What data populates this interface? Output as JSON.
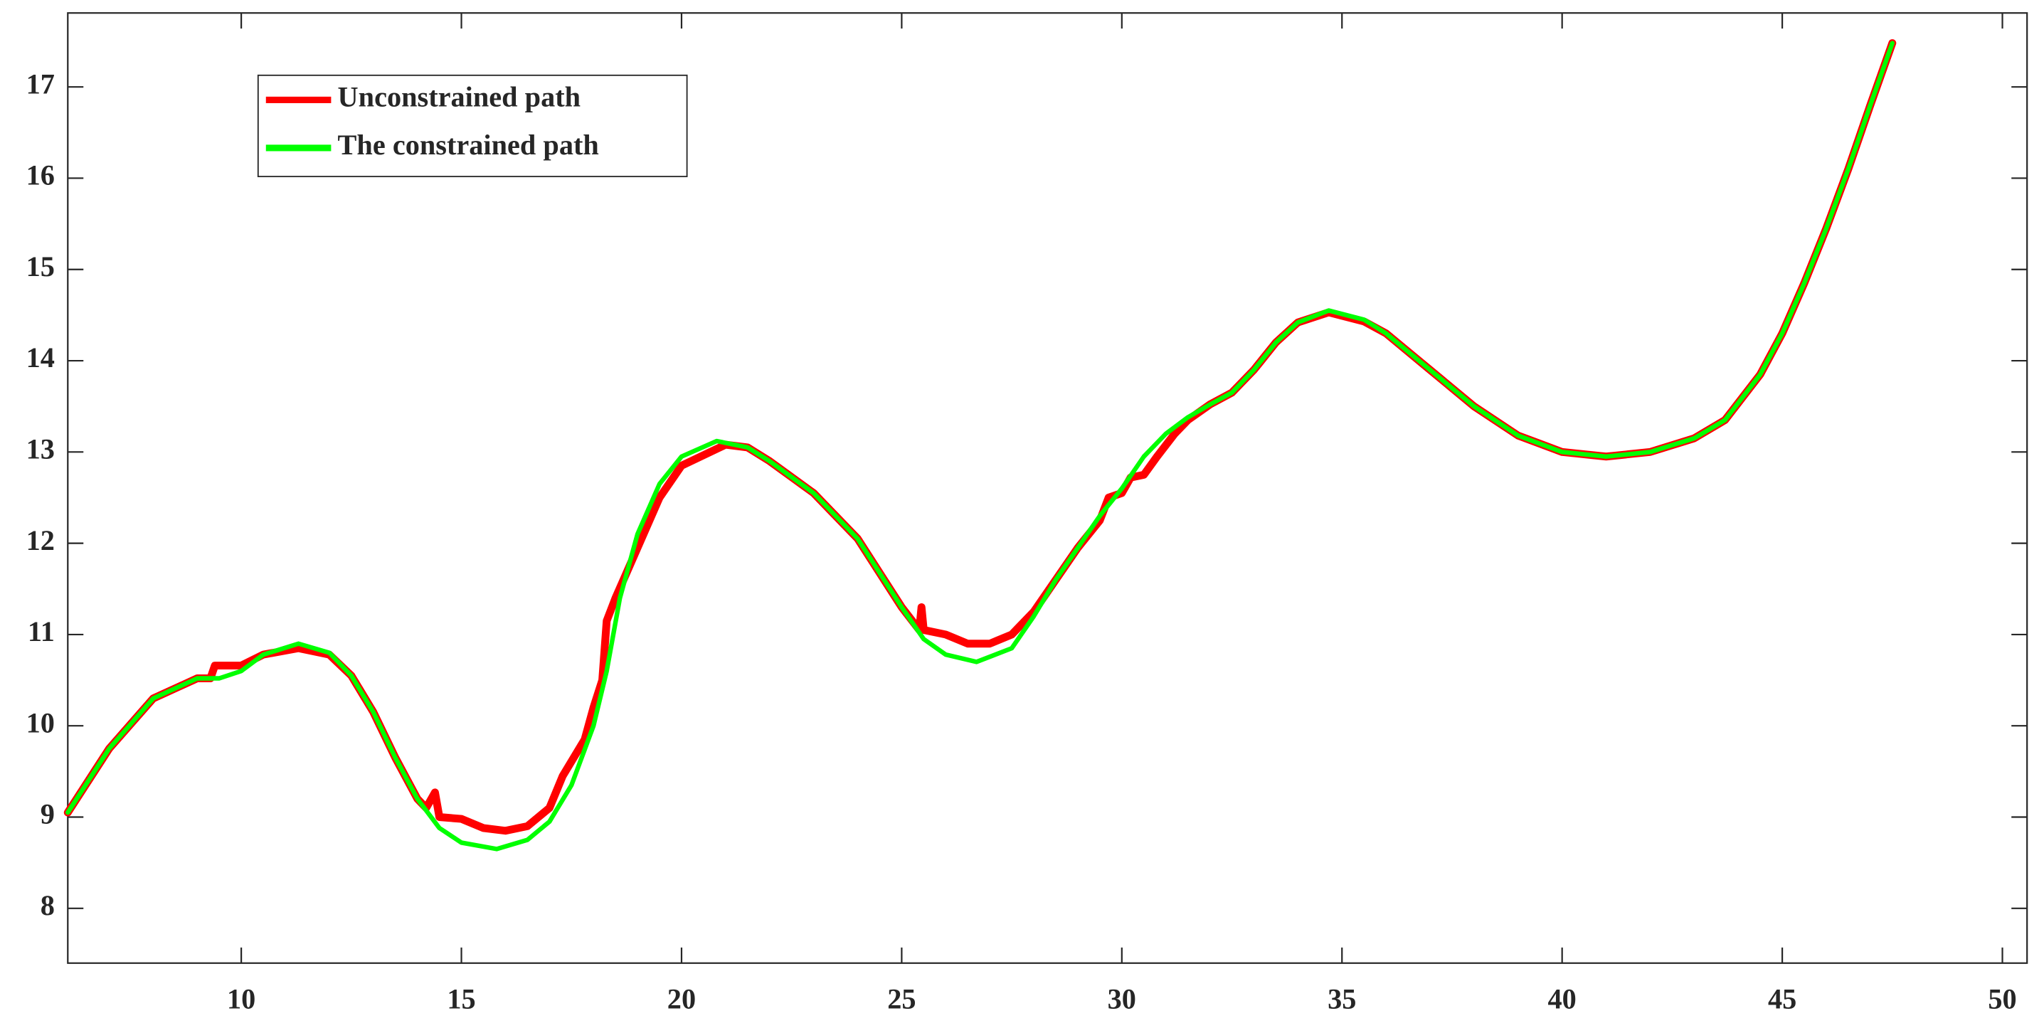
{
  "chart_data": {
    "type": "line",
    "xlim": [
      6.06,
      50.56
    ],
    "ylim": [
      7.4,
      17.81
    ],
    "xticks": [
      10,
      15,
      20,
      25,
      30,
      35,
      40,
      45,
      50
    ],
    "yticks": [
      8,
      9,
      10,
      11,
      12,
      13,
      14,
      15,
      16,
      17
    ],
    "legend": "upper-left",
    "series": [
      {
        "name": "Unconstrained path",
        "color": "#ff0000",
        "x": [
          6.06,
          7,
          8,
          9,
          9.3,
          9.4,
          10,
          10.5,
          11.3,
          12,
          12.5,
          13,
          13.5,
          14,
          14.2,
          14.4,
          14.5,
          15,
          15.5,
          16,
          16.5,
          17,
          17.3,
          17.8,
          18,
          18.2,
          18.3,
          18.5,
          19,
          19.5,
          20,
          21,
          21.5,
          22,
          23,
          24,
          25,
          25.4,
          25.45,
          25.5,
          26,
          26.5,
          27,
          27.5,
          28,
          28.5,
          29,
          29.5,
          29.7,
          30,
          30.2,
          30.5,
          30.8,
          31.2,
          31.5,
          32,
          32.5,
          33,
          33.5,
          34,
          34.7,
          35.5,
          36,
          37,
          38,
          39,
          40,
          41,
          42,
          43,
          43.7,
          44.5,
          45,
          45.5,
          46,
          46.5,
          47,
          47.5
        ],
        "values": [
          9.05,
          9.75,
          10.3,
          10.52,
          10.52,
          10.66,
          10.66,
          10.78,
          10.85,
          10.78,
          10.55,
          10.15,
          9.65,
          9.2,
          9.1,
          9.27,
          9.0,
          8.98,
          8.88,
          8.85,
          8.9,
          9.1,
          9.45,
          9.85,
          10.2,
          10.5,
          11.15,
          11.4,
          11.95,
          12.5,
          12.85,
          13.08,
          13.05,
          12.9,
          12.55,
          12.05,
          11.3,
          11.05,
          11.3,
          11.05,
          11.0,
          10.9,
          10.9,
          11.0,
          11.25,
          11.6,
          11.95,
          12.25,
          12.5,
          12.55,
          12.72,
          12.75,
          12.95,
          13.2,
          13.35,
          13.52,
          13.65,
          13.9,
          14.2,
          14.42,
          14.53,
          14.43,
          14.3,
          13.9,
          13.5,
          13.18,
          13.0,
          12.95,
          13.0,
          13.15,
          13.35,
          13.85,
          14.3,
          14.85,
          15.45,
          16.1,
          16.8,
          17.48
        ]
      },
      {
        "name": "The constrained path",
        "color": "#00ff00",
        "x": [
          6.06,
          7,
          8,
          9,
          9.5,
          10,
          10.5,
          11.3,
          12,
          12.5,
          13,
          13.5,
          14,
          14.5,
          15,
          15.8,
          16.5,
          17,
          17.5,
          18,
          18.3,
          18.6,
          19,
          19.5,
          20,
          20.8,
          21.5,
          22,
          23,
          24,
          25,
          25.5,
          26,
          26.7,
          27.5,
          28,
          28.5,
          29,
          29.5,
          30,
          30.5,
          31,
          31.5,
          32,
          32.5,
          33,
          33.5,
          34,
          34.7,
          35.5,
          36,
          37,
          38,
          39,
          40,
          41,
          42,
          43,
          43.7,
          44.5,
          45,
          45.5,
          46,
          46.5,
          47,
          47.5
        ],
        "values": [
          9.05,
          9.75,
          10.3,
          10.52,
          10.52,
          10.6,
          10.78,
          10.9,
          10.8,
          10.55,
          10.15,
          9.65,
          9.2,
          8.88,
          8.72,
          8.65,
          8.75,
          8.95,
          9.35,
          10.0,
          10.6,
          11.4,
          12.1,
          12.65,
          12.95,
          13.12,
          13.05,
          12.9,
          12.55,
          12.05,
          11.3,
          10.95,
          10.78,
          10.7,
          10.85,
          11.2,
          11.6,
          11.95,
          12.3,
          12.6,
          12.95,
          13.2,
          13.38,
          13.52,
          13.65,
          13.9,
          14.2,
          14.42,
          14.55,
          14.45,
          14.3,
          13.9,
          13.5,
          13.18,
          13.0,
          12.95,
          13.0,
          13.15,
          13.35,
          13.85,
          14.3,
          14.85,
          15.45,
          16.1,
          16.8,
          17.48
        ]
      }
    ]
  }
}
